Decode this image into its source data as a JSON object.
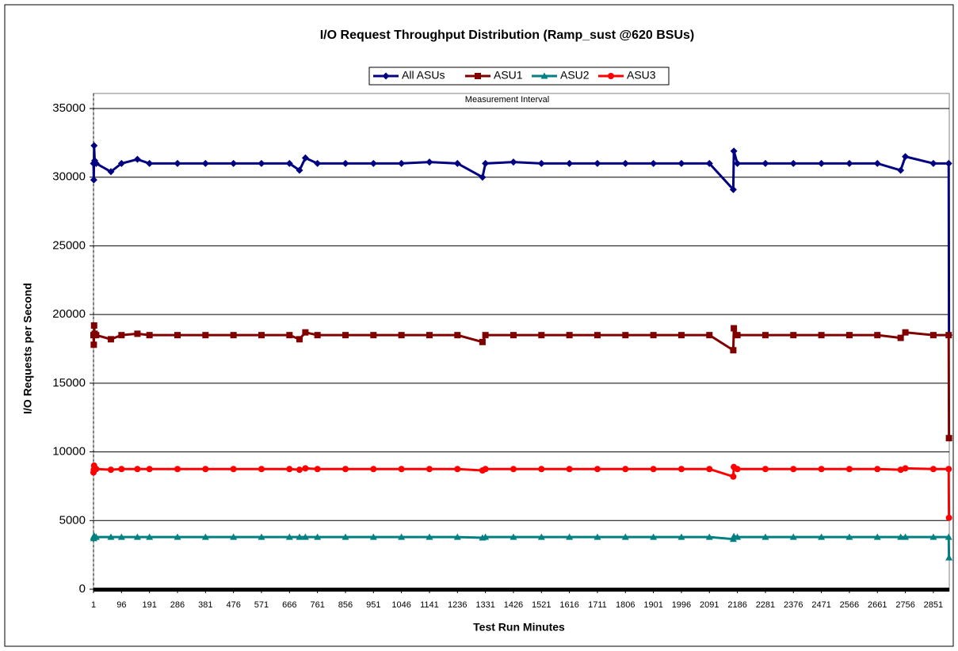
{
  "chart_data": {
    "type": "line",
    "title": "I/O Request Throughput Distribution (Ramp_sust @620 BSUs)",
    "x_label": "Test Run Minutes",
    "y_label": "I/O Requests per Second",
    "annotation": "Measurement Interval",
    "x": [
      1,
      2,
      3,
      5,
      10,
      60,
      96,
      150,
      191,
      286,
      381,
      476,
      571,
      666,
      700,
      720,
      761,
      856,
      951,
      1046,
      1141,
      1236,
      1321,
      1331,
      1426,
      1521,
      1616,
      1711,
      1806,
      1901,
      1996,
      2091,
      2172,
      2174,
      2186,
      2281,
      2376,
      2471,
      2566,
      2661,
      2740,
      2756,
      2851,
      2903,
      2904
    ],
    "xlim": [
      1,
      2905
    ],
    "xticks": [
      1,
      96,
      191,
      286,
      381,
      476,
      571,
      666,
      761,
      856,
      951,
      1046,
      1141,
      1236,
      1331,
      1426,
      1521,
      1616,
      1711,
      1806,
      1901,
      1996,
      2091,
      2186,
      2281,
      2376,
      2471,
      2566,
      2661,
      2756,
      2851
    ],
    "ylim": [
      0,
      35000
    ],
    "yticks": [
      0,
      5000,
      10000,
      15000,
      20000,
      25000,
      30000,
      35000
    ],
    "grid": true,
    "legend": "top",
    "series": [
      {
        "name": "All ASUs",
        "color": "#000080",
        "marker": "diamond",
        "values": [
          31000,
          29800,
          32300,
          31200,
          31000,
          30400,
          31000,
          31300,
          31000,
          31000,
          31000,
          31000,
          31000,
          31000,
          30500,
          31400,
          31000,
          31000,
          31000,
          31000,
          31100,
          31000,
          30000,
          31000,
          31100,
          31000,
          31000,
          31000,
          31000,
          31000,
          31000,
          31000,
          29100,
          31900,
          31000,
          31000,
          31000,
          31000,
          31000,
          31000,
          30500,
          31500,
          31000,
          31000,
          18500
        ]
      },
      {
        "name": "ASU1",
        "color": "#800000",
        "marker": "square",
        "values": [
          18500,
          17800,
          19200,
          18600,
          18500,
          18200,
          18500,
          18600,
          18500,
          18500,
          18500,
          18500,
          18500,
          18500,
          18200,
          18700,
          18500,
          18500,
          18500,
          18500,
          18500,
          18500,
          18000,
          18500,
          18500,
          18500,
          18500,
          18500,
          18500,
          18500,
          18500,
          18500,
          17400,
          19000,
          18500,
          18500,
          18500,
          18500,
          18500,
          18500,
          18300,
          18700,
          18500,
          18500,
          11000
        ]
      },
      {
        "name": "ASU2",
        "color": "#008080",
        "marker": "triangle",
        "values": [
          3800,
          3700,
          3900,
          3800,
          3800,
          3800,
          3800,
          3800,
          3800,
          3800,
          3800,
          3800,
          3800,
          3800,
          3800,
          3800,
          3800,
          3800,
          3800,
          3800,
          3800,
          3800,
          3750,
          3800,
          3800,
          3800,
          3800,
          3800,
          3800,
          3800,
          3800,
          3800,
          3650,
          3850,
          3800,
          3800,
          3800,
          3800,
          3800,
          3800,
          3800,
          3800,
          3800,
          3800,
          2300
        ]
      },
      {
        "name": "ASU3",
        "color": "#ff0000",
        "marker": "circle",
        "values": [
          8500,
          8700,
          9000,
          8800,
          8750,
          8700,
          8750,
          8750,
          8750,
          8750,
          8750,
          8750,
          8750,
          8750,
          8700,
          8800,
          8750,
          8750,
          8750,
          8750,
          8750,
          8750,
          8650,
          8750,
          8750,
          8750,
          8750,
          8750,
          8750,
          8750,
          8750,
          8750,
          8200,
          8900,
          8750,
          8750,
          8750,
          8750,
          8750,
          8750,
          8700,
          8800,
          8750,
          8750,
          5200
        ]
      }
    ]
  }
}
